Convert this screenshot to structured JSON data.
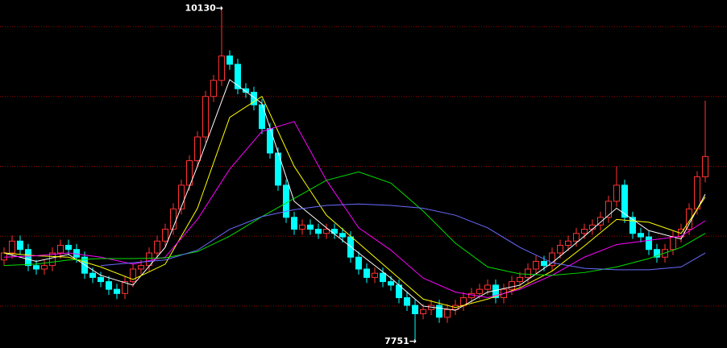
{
  "chart_data": {
    "type": "candlestick",
    "open": [
      8330,
      8380,
      8465,
      8405,
      8290,
      8265,
      8290,
      8380,
      8435,
      8405,
      8350,
      8235,
      8205,
      8175,
      8120,
      8090,
      8175,
      8265,
      8290,
      8380,
      8465,
      8550,
      8695,
      8865,
      9040,
      9210,
      9500,
      9615,
      9790,
      9730,
      9555,
      9530,
      9440,
      9270,
      9095,
      8865,
      8635,
      8550,
      8580,
      8550,
      8520,
      8550,
      8520,
      8495,
      8350,
      8265,
      8205,
      8235,
      8175,
      8150,
      8060,
      8005,
      7945,
      7975,
      8005,
      7920,
      7975,
      8005,
      8060,
      8090,
      8120,
      8150,
      8060,
      8120,
      8175,
      8205,
      8265,
      8320,
      8290,
      8380,
      8435,
      8465,
      8520,
      8550,
      8580,
      8635,
      8750,
      8865,
      8635,
      8520,
      8495,
      8405,
      8350,
      8405,
      8495,
      8550,
      8695,
      8925
    ],
    "high": [
      8420,
      8505,
      8505,
      8445,
      8330,
      8330,
      8420,
      8475,
      8475,
      8445,
      8390,
      8275,
      8245,
      8215,
      8160,
      8215,
      8305,
      8330,
      8420,
      8505,
      8590,
      8735,
      8905,
      9080,
      9250,
      9540,
      9655,
      10130,
      9830,
      9770,
      9595,
      9570,
      9480,
      9310,
      9135,
      8905,
      8675,
      8620,
      8620,
      8590,
      8590,
      8590,
      8560,
      8535,
      8390,
      8305,
      8275,
      8275,
      8215,
      8190,
      8100,
      8045,
      8015,
      8045,
      8045,
      8015,
      8045,
      8100,
      8130,
      8160,
      8190,
      8190,
      8160,
      8215,
      8245,
      8305,
      8360,
      8360,
      8420,
      8475,
      8505,
      8560,
      8590,
      8620,
      8675,
      8790,
      9000,
      8905,
      8675,
      8560,
      8535,
      8445,
      8445,
      8535,
      8590,
      8735,
      8965,
      9470
    ],
    "low": [
      8290,
      8340,
      8365,
      8250,
      8225,
      8225,
      8250,
      8340,
      8365,
      8310,
      8195,
      8165,
      8135,
      8080,
      8050,
      8050,
      8135,
      8225,
      8250,
      8340,
      8425,
      8510,
      8655,
      8825,
      9000,
      9170,
      9460,
      9575,
      9690,
      9515,
      9490,
      9400,
      9230,
      9055,
      8825,
      8595,
      8510,
      8510,
      8510,
      8480,
      8480,
      8480,
      8455,
      8310,
      8225,
      8165,
      8165,
      8135,
      8110,
      8020,
      7965,
      7751,
      7905,
      7935,
      7880,
      7880,
      7935,
      7965,
      8020,
      8050,
      8080,
      8020,
      8020,
      8080,
      8135,
      8165,
      8225,
      8250,
      8250,
      8340,
      8395,
      8425,
      8480,
      8510,
      8540,
      8595,
      8710,
      8595,
      8480,
      8455,
      8365,
      8310,
      8310,
      8365,
      8455,
      8510,
      8655,
      8885
    ],
    "close": [
      8380,
      8465,
      8405,
      8290,
      8265,
      8290,
      8380,
      8435,
      8405,
      8350,
      8235,
      8205,
      8175,
      8120,
      8090,
      8175,
      8265,
      8290,
      8380,
      8465,
      8550,
      8695,
      8865,
      9040,
      9210,
      9500,
      9615,
      9790,
      9730,
      9555,
      9530,
      9440,
      9270,
      9095,
      8865,
      8635,
      8550,
      8580,
      8550,
      8520,
      8550,
      8520,
      8495,
      8350,
      8265,
      8205,
      8235,
      8175,
      8150,
      8060,
      8005,
      7945,
      7975,
      8005,
      7920,
      7975,
      8005,
      8060,
      8090,
      8120,
      8150,
      8060,
      8120,
      8175,
      8205,
      8265,
      8320,
      8290,
      8380,
      8435,
      8465,
      8520,
      8550,
      8580,
      8635,
      8750,
      8865,
      8635,
      8520,
      8495,
      8405,
      8350,
      8405,
      8495,
      8550,
      8695,
      8925,
      9070
    ],
    "up_color": "#ff3232",
    "down_color": "#00ffff",
    "ylim": [
      7700,
      10190
    ],
    "yticks": [
      8000,
      8500,
      9000,
      9500,
      10000
    ],
    "grid": true,
    "grid_color": "#a00000",
    "ma_x": [
      0,
      4,
      8,
      12,
      16,
      20,
      24,
      28,
      32,
      36,
      40,
      44,
      48,
      52,
      56,
      60,
      64,
      68,
      72,
      76,
      80,
      84,
      87
    ],
    "series": [
      {
        "color": "#ffffff",
        "values": [
          8380,
          8320,
          8370,
          8220,
          8150,
          8420,
          9000,
          9620,
          9450,
          8750,
          8560,
          8380,
          8200,
          8000,
          7970,
          8100,
          8150,
          8310,
          8500,
          8700,
          8540,
          8480,
          8800
        ]
      },
      {
        "color": "#ffff00",
        "values": [
          8380,
          8360,
          8350,
          8280,
          8190,
          8300,
          8700,
          9350,
          9500,
          9000,
          8650,
          8450,
          8250,
          8050,
          7990,
          8050,
          8130,
          8250,
          8430,
          8620,
          8600,
          8520,
          8780
        ]
      },
      {
        "color": "#ff00ff",
        "values": [
          8350,
          8360,
          8380,
          8350,
          8300,
          8350,
          8620,
          8980,
          9250,
          9320,
          8900,
          8560,
          8400,
          8200,
          8100,
          8060,
          8120,
          8220,
          8350,
          8440,
          8470,
          8500,
          8610
        ]
      },
      {
        "color": "#00e000",
        "values": [
          8290,
          8300,
          8330,
          8340,
          8340,
          8345,
          8390,
          8500,
          8640,
          8770,
          8900,
          8960,
          8880,
          8680,
          8450,
          8280,
          8230,
          8220,
          8240,
          8280,
          8340,
          8420,
          8520
        ]
      },
      {
        "color": "#6a6aff",
        "values": [
          null,
          null,
          null,
          8290,
          8310,
          8330,
          8400,
          8550,
          8640,
          8690,
          8720,
          8730,
          8720,
          8700,
          8650,
          8560,
          8420,
          8310,
          8270,
          8260,
          8260,
          8280,
          8380
        ]
      }
    ],
    "annotations": [
      {
        "value": 10130,
        "label": "10130→"
      },
      {
        "value": 7751,
        "label": "7751→"
      }
    ]
  }
}
